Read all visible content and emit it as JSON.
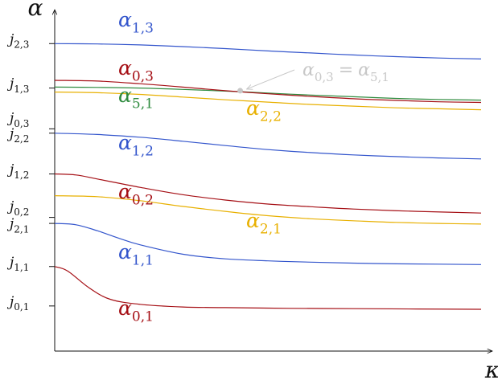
{
  "chart_data": {
    "type": "line",
    "title": "",
    "xlabel": "κ",
    "ylabel": "α",
    "grid": false,
    "legend": "none",
    "xlim": [
      0,
      1
    ],
    "ylim": [
      0,
      1
    ],
    "y_ticks": [
      {
        "base": "j",
        "sub": "0,1",
        "value": 0.135
      },
      {
        "base": "j",
        "sub": "1,1",
        "value": 0.253
      },
      {
        "base": "j",
        "sub": "2,1",
        "value": 0.382
      },
      {
        "base": "j",
        "sub": "0,2",
        "value": 0.4
      },
      {
        "base": "j",
        "sub": "1,2",
        "value": 0.53
      },
      {
        "base": "j",
        "sub": "2,2",
        "value": 0.652
      },
      {
        "base": "j",
        "sub": "0,3",
        "value": 0.665
      },
      {
        "base": "j",
        "sub": "1,3",
        "value": 0.787
      },
      {
        "base": "j",
        "sub": "2,3",
        "value": 0.92
      }
    ],
    "series": [
      {
        "base": "α",
        "sub": "0,1",
        "color": "#a50f15",
        "x": [
          0,
          0.03,
          0.08,
          0.13,
          0.2,
          0.3,
          0.4,
          0.55,
          0.7,
          0.85,
          1.0
        ],
        "y": [
          0.253,
          0.24,
          0.19,
          0.155,
          0.14,
          0.132,
          0.13,
          0.128,
          0.127,
          0.126,
          0.125
        ]
      },
      {
        "base": "α",
        "sub": "1,1",
        "color": "#3355cc",
        "x": [
          0,
          0.05,
          0.1,
          0.15,
          0.2,
          0.3,
          0.4,
          0.5,
          0.6,
          0.75,
          0.9,
          1.0
        ],
        "y": [
          0.382,
          0.378,
          0.36,
          0.338,
          0.318,
          0.29,
          0.276,
          0.27,
          0.266,
          0.262,
          0.26,
          0.259
        ]
      },
      {
        "base": "α",
        "sub": "0,2",
        "color": "#a50f15",
        "x": [
          0,
          0.05,
          0.1,
          0.2,
          0.3,
          0.4,
          0.5,
          0.6,
          0.7,
          0.85,
          1.0
        ],
        "y": [
          0.53,
          0.527,
          0.515,
          0.49,
          0.468,
          0.452,
          0.44,
          0.432,
          0.425,
          0.418,
          0.413
        ]
      },
      {
        "base": "α",
        "sub": "2,1",
        "color": "#e8b000",
        "x": [
          0,
          0.1,
          0.2,
          0.3,
          0.4,
          0.5,
          0.6,
          0.7,
          0.8,
          0.9,
          1.0
        ],
        "y": [
          0.465,
          0.462,
          0.45,
          0.433,
          0.418,
          0.405,
          0.396,
          0.39,
          0.385,
          0.382,
          0.38
        ]
      },
      {
        "base": "α",
        "sub": "1,2",
        "color": "#3355cc",
        "x": [
          0,
          0.1,
          0.2,
          0.3,
          0.4,
          0.5,
          0.6,
          0.7,
          0.8,
          0.9,
          1.0
        ],
        "y": [
          0.652,
          0.648,
          0.64,
          0.628,
          0.615,
          0.603,
          0.594,
          0.587,
          0.582,
          0.578,
          0.575
        ]
      },
      {
        "base": "α",
        "sub": "2,2",
        "color": "#e8b000",
        "x": [
          0,
          0.1,
          0.2,
          0.3,
          0.4,
          0.5,
          0.6,
          0.7,
          0.8,
          0.9,
          1.0
        ],
        "y": [
          0.775,
          0.773,
          0.768,
          0.76,
          0.752,
          0.745,
          0.738,
          0.733,
          0.728,
          0.725,
          0.722
        ]
      },
      {
        "base": "α",
        "sub": "5,1",
        "color": "#2e8b3e",
        "x": [
          0,
          0.1,
          0.2,
          0.3,
          0.4,
          0.5,
          0.6,
          0.7,
          0.8,
          0.9,
          1.0
        ],
        "y": [
          0.79,
          0.789,
          0.787,
          0.783,
          0.778,
          0.772,
          0.766,
          0.761,
          0.756,
          0.753,
          0.751
        ]
      },
      {
        "base": "α",
        "sub": "0,3",
        "color": "#a50f15",
        "x": [
          0,
          0.1,
          0.2,
          0.3,
          0.4,
          0.5,
          0.6,
          0.7,
          0.8,
          0.9,
          1.0
        ],
        "y": [
          0.81,
          0.808,
          0.8,
          0.79,
          0.779,
          0.77,
          0.762,
          0.755,
          0.75,
          0.746,
          0.744
        ]
      },
      {
        "base": "α",
        "sub": "1,3",
        "color": "#3355cc",
        "x": [
          0,
          0.1,
          0.2,
          0.3,
          0.4,
          0.5,
          0.6,
          0.7,
          0.8,
          0.9,
          1.0
        ],
        "y": [
          0.92,
          0.919,
          0.916,
          0.911,
          0.905,
          0.898,
          0.892,
          0.886,
          0.881,
          0.877,
          0.874
        ]
      }
    ],
    "annotation": {
      "text_left": {
        "base": "α",
        "sub": "0,3"
      },
      "eq": "=",
      "text_right": {
        "base": "α",
        "sub": "5,1"
      },
      "point": {
        "x": 0.435,
        "y": 0.779
      },
      "color": "#c8c8c8"
    }
  }
}
